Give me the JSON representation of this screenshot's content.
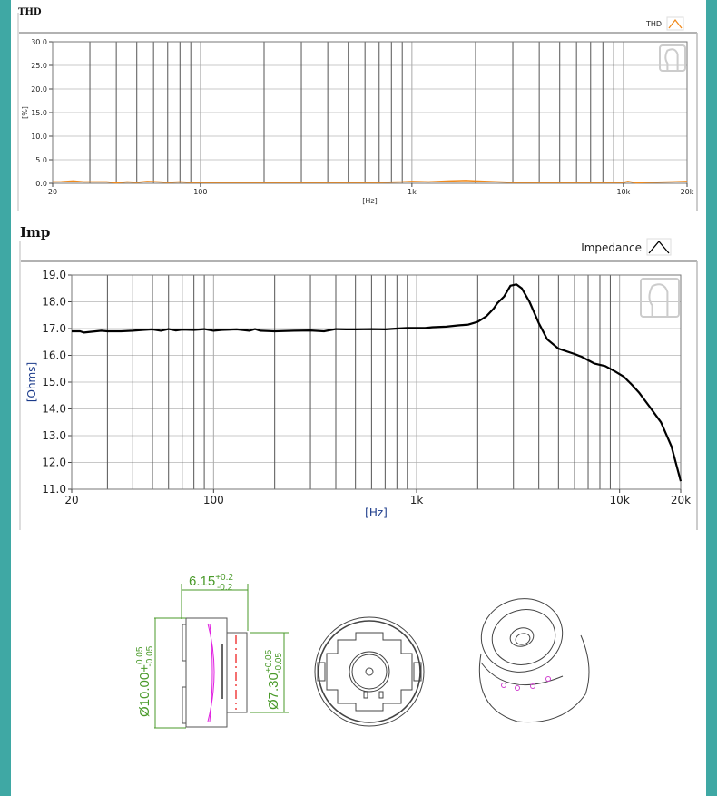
{
  "colors": {
    "border": "#3fa8a4",
    "thd_line": "#f08a1c",
    "imp_line": "#000000",
    "dimension": "#4a9a2a",
    "axis_unit": "#1a3a8a"
  },
  "chart_data": [
    {
      "id": "thd",
      "type": "line",
      "title": "THD",
      "legend": "THD",
      "legend_placement": "top-right",
      "xlabel": "[Hz]",
      "ylabel": "[%]",
      "xscale": "log",
      "xlim": [
        20,
        20000
      ],
      "ylim": [
        0,
        30
      ],
      "grid": true,
      "xticks": [
        "20",
        "100",
        "1k",
        "10k",
        "20k"
      ],
      "yticks": [
        "0.0",
        "5.0",
        "10.0",
        "15.0",
        "20.0",
        "25.0",
        "30.0"
      ],
      "series": [
        {
          "name": "THD",
          "color": "#f08a1c",
          "x": [
            20,
            22,
            25,
            28,
            32,
            36,
            40,
            45,
            50,
            56,
            63,
            70,
            80,
            90,
            100,
            200,
            300,
            500,
            700,
            900,
            1000,
            1200,
            1500,
            1800,
            2000,
            3000,
            5000,
            8000,
            10000,
            10500,
            11500,
            13000,
            17000,
            20000
          ],
          "y": [
            0.3,
            0.35,
            0.5,
            0.3,
            0.3,
            0.3,
            0.1,
            0.3,
            0.2,
            0.4,
            0.3,
            0.2,
            0.3,
            0.2,
            0.2,
            0.2,
            0.2,
            0.2,
            0.2,
            0.3,
            0.4,
            0.3,
            0.5,
            0.6,
            0.5,
            0.2,
            0.2,
            0.2,
            0.2,
            0.4,
            0.1,
            0.2,
            0.3,
            0.4
          ]
        }
      ]
    },
    {
      "id": "imp",
      "type": "line",
      "title": "Imp",
      "legend": "Impedance",
      "legend_placement": "top-right",
      "xlabel": "[Hz]",
      "ylabel": "[Ohms]",
      "xscale": "log",
      "xlim": [
        20,
        20000
      ],
      "ylim": [
        11,
        19
      ],
      "grid": true,
      "xticks": [
        "20",
        "100",
        "1k",
        "10k",
        "20k"
      ],
      "yticks": [
        "11.0",
        "12.0",
        "13.0",
        "14.0",
        "15.0",
        "16.0",
        "17.0",
        "18.0",
        "19.0"
      ],
      "series": [
        {
          "name": "Impedance",
          "color": "#000000",
          "x": [
            20,
            22,
            23,
            25,
            28,
            30,
            35,
            40,
            45,
            50,
            55,
            60,
            65,
            70,
            80,
            90,
            100,
            110,
            130,
            150,
            160,
            170,
            200,
            250,
            300,
            350,
            400,
            450,
            500,
            600,
            700,
            800,
            900,
            1000,
            1100,
            1200,
            1400,
            1600,
            1800,
            2000,
            2200,
            2400,
            2500,
            2700,
            2900,
            3100,
            3300,
            3600,
            4000,
            4400,
            5000,
            6000,
            6500,
            7500,
            8500,
            9500,
            10500,
            11500,
            12500,
            14000,
            16000,
            18000,
            20000
          ],
          "y": [
            16.9,
            16.9,
            16.85,
            16.88,
            16.92,
            16.9,
            16.9,
            16.92,
            16.95,
            16.97,
            16.92,
            16.98,
            16.93,
            16.96,
            16.95,
            16.98,
            16.92,
            16.95,
            16.97,
            16.92,
            16.98,
            16.92,
            16.9,
            16.92,
            16.93,
            16.9,
            16.98,
            16.97,
            16.97,
            16.98,
            16.97,
            17.0,
            17.02,
            17.02,
            17.02,
            17.05,
            17.07,
            17.12,
            17.15,
            17.25,
            17.45,
            17.75,
            17.95,
            18.2,
            18.6,
            18.65,
            18.5,
            18.0,
            17.2,
            16.6,
            16.25,
            16.05,
            15.95,
            15.7,
            15.6,
            15.4,
            15.2,
            14.9,
            14.6,
            14.1,
            13.5,
            12.6,
            11.3
          ]
        }
      ]
    }
  ],
  "drawing": {
    "length": {
      "value": "6.15",
      "tol_plus": "+0.2",
      "tol_minus": "-0.2"
    },
    "outer_diameter": {
      "value": "Ø10.00+",
      "tol_plus": "0.05",
      "tol_minus": "-0.05"
    },
    "inner_diameter": {
      "value": "Ø7.30",
      "tol_plus": "+0.05",
      "tol_minus": "-0.05"
    }
  }
}
